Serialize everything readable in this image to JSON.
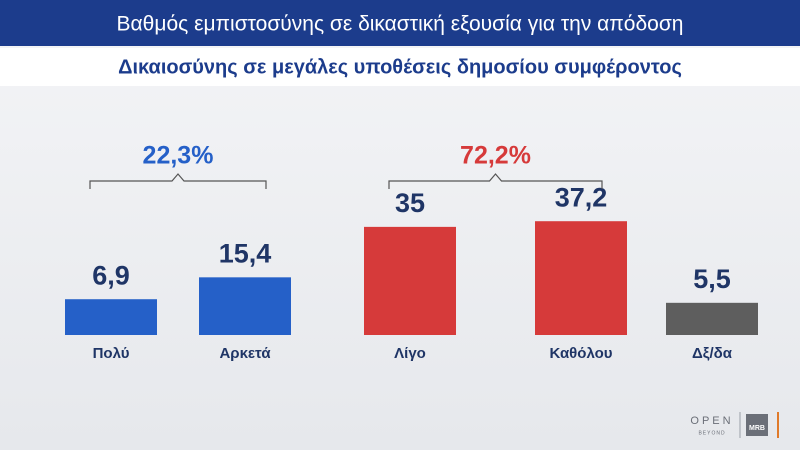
{
  "chart_data": {
    "type": "bar",
    "title": "Βαθμός εμπιστοσύνης σε δικαστική εξουσία για την απόδοση",
    "subtitle": "Δικαιοσύνης σε μεγάλες υποθέσεις δημοσίου συμφέροντος",
    "categories": [
      "Πολύ",
      "Αρκετά",
      "Λίγο",
      "Καθόλου",
      "Δξ/δα"
    ],
    "values": [
      6.9,
      15.4,
      35,
      37.2,
      5.5
    ],
    "value_labels": [
      "6,9",
      "15,4",
      "35",
      "37,2",
      "5,5"
    ],
    "colors": [
      "#2560c8",
      "#2560c8",
      "#d63a3a",
      "#d63a3a",
      "#5e5e5e"
    ],
    "ylim": [
      -7,
      40
    ],
    "groups": [
      {
        "value": 22.3,
        "label": "22,3%",
        "categories": [
          "Πολύ",
          "Αρκετά"
        ],
        "color": "#2560c8"
      },
      {
        "value": 72.2,
        "label": "72,2%",
        "categories": [
          "Λίγο",
          "Καθόλου"
        ],
        "color": "#d63a3a"
      }
    ]
  },
  "branding": {
    "logo": "OPEN",
    "logo_tagline": "BEYOND",
    "pollster": "MRB"
  }
}
